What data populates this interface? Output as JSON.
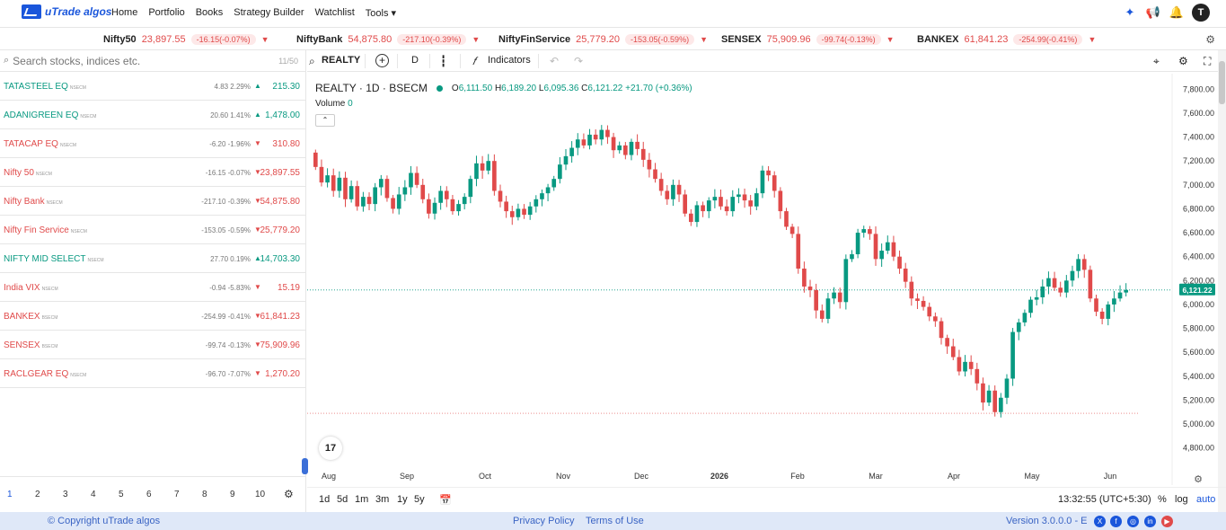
{
  "nav": {
    "brand": "uTrade algos",
    "menu": [
      "Home",
      "Portfolio",
      "Books",
      "Strategy Builder",
      "Watchlist",
      "Tools"
    ],
    "avatar": "T"
  },
  "ticker": [
    {
      "name": "Nifty50",
      "price": "23,897.55",
      "change": "-16.15(-0.07%)"
    },
    {
      "name": "NiftyBank",
      "price": "54,875.80",
      "change": "-217.10(-0.39%)"
    },
    {
      "name": "NiftyFinService",
      "price": "25,779.20",
      "change": "-153.05(-0.59%)"
    },
    {
      "name": "SENSEX",
      "price": "75,909.96",
      "change": "-99.74(-0.13%)"
    },
    {
      "name": "BANKEX",
      "price": "61,841.23",
      "change": "-254.99(-0.41%)"
    }
  ],
  "watchlist": {
    "search_placeholder": "Search stocks, indices etc.",
    "count": "11/50",
    "rows": [
      {
        "symbol": "TATASTEEL EQ",
        "exch": "NSECM",
        "change": "4.83 2.29%",
        "ltp": "215.30",
        "dir": "up"
      },
      {
        "symbol": "ADANIGREEN EQ",
        "exch": "NSECM",
        "change": "20.60 1.41%",
        "ltp": "1,478.00",
        "dir": "up"
      },
      {
        "symbol": "TATACAP EQ",
        "exch": "NSECM",
        "change": "-6.20 -1.96%",
        "ltp": "310.80",
        "dir": "dn"
      },
      {
        "symbol": "Nifty 50",
        "exch": "NSECM",
        "change": "-16.15 -0.07%",
        "ltp": "23,897.55",
        "dir": "dn"
      },
      {
        "symbol": "Nifty Bank",
        "exch": "NSECM",
        "change": "-217.10 -0.39%",
        "ltp": "54,875.80",
        "dir": "dn"
      },
      {
        "symbol": "Nifty Fin Service",
        "exch": "NSECM",
        "change": "-153.05 -0.59%",
        "ltp": "25,779.20",
        "dir": "dn"
      },
      {
        "symbol": "NIFTY MID SELECT",
        "exch": "NSECM",
        "change": "27.70 0.19%",
        "ltp": "14,703.30",
        "dir": "up"
      },
      {
        "symbol": "India VIX",
        "exch": "NSECM",
        "change": "-0.94 -5.83%",
        "ltp": "15.19",
        "dir": "dn"
      },
      {
        "symbol": "BANKEX",
        "exch": "BSECM",
        "change": "-254.99 -0.41%",
        "ltp": "61,841.23",
        "dir": "dn"
      },
      {
        "symbol": "SENSEX",
        "exch": "BSECM",
        "change": "-99.74 -0.13%",
        "ltp": "75,909.96",
        "dir": "dn"
      },
      {
        "symbol": "RACLGEAR EQ",
        "exch": "NSECM",
        "change": "-96.70 -7.07%",
        "ltp": "1,270.20",
        "dir": "dn"
      }
    ],
    "pages": [
      "1",
      "2",
      "3",
      "4",
      "5",
      "6",
      "7",
      "8",
      "9",
      "10"
    ]
  },
  "toolbar": {
    "symbol": "REALTY",
    "interval": "D",
    "indicators": "Indicators"
  },
  "chart_header": {
    "title": "REALTY · 1D · BSECM",
    "o_label": "O",
    "o": "6,111.50",
    "h_label": "H",
    "h": "6,189.20",
    "l_label": "L",
    "l": "6,095.36",
    "c_label": "C",
    "c": "6,121.22",
    "chg": "+21.70 (+0.36%)",
    "volume_label": "Volume",
    "volume": "0",
    "last_price": "6,121.22"
  },
  "chart_data": {
    "type": "candlestick",
    "y_ticks": [
      4800,
      5000,
      5200,
      5400,
      5600,
      5800,
      6000,
      6200,
      6400,
      6600,
      6800,
      7000,
      7200,
      7400,
      7600,
      7800
    ],
    "y_tick_labels": [
      "4,800.00",
      "5,000.00",
      "5,200.00",
      "5,400.00",
      "5,600.00",
      "5,800.00",
      "6,000.00",
      "6,200.00",
      "6,400.00",
      "6,600.00",
      "6,800.00",
      "7,000.00",
      "7,200.00",
      "7,400.00",
      "7,600.00",
      "7,800.00"
    ],
    "ylim": [
      4700,
      7870
    ],
    "x_labels": [
      "Aug",
      "Sep",
      "Oct",
      "Nov",
      "Dec",
      "2026",
      "Feb",
      "Mar",
      "Apr",
      "May",
      "Jun"
    ],
    "x_label_months": [
      0,
      1,
      2,
      3,
      4,
      5,
      6,
      7,
      8,
      9,
      10
    ],
    "closes": [
      7150,
      7020,
      7080,
      6950,
      7060,
      6880,
      6990,
      6820,
      6900,
      6840,
      6980,
      7050,
      6890,
      6800,
      6920,
      6980,
      7100,
      7000,
      6880,
      6760,
      6850,
      6950,
      6880,
      6780,
      6840,
      6900,
      7050,
      7180,
      7120,
      7200,
      6950,
      6860,
      6780,
      6730,
      6800,
      6750,
      6820,
      6880,
      6930,
      6980,
      7050,
      7170,
      7240,
      7310,
      7380,
      7330,
      7420,
      7380,
      7460,
      7400,
      7290,
      7330,
      7250,
      7360,
      7300,
      7210,
      7130,
      7050,
      6950,
      6880,
      7000,
      6920,
      6760,
      6690,
      6830,
      6780,
      6870,
      6900,
      6820,
      6780,
      6900,
      6920,
      6870,
      6820,
      6930,
      7120,
      7080,
      6950,
      6780,
      6650,
      6590,
      6300,
      6150,
      6120,
      5950,
      5880,
      6050,
      6100,
      6020,
      6380,
      6420,
      6600,
      6630,
      6590,
      6380,
      6450,
      6520,
      6400,
      6300,
      6190,
      6050,
      6030,
      5980,
      5900,
      5860,
      5720,
      5650,
      5560,
      5440,
      5520,
      5460,
      5340,
      5180,
      5280,
      5100,
      5220,
      5380,
      5770,
      5850,
      5930,
      6040,
      6060,
      6150,
      6220,
      6140,
      6100,
      6200,
      6280,
      6380,
      6290,
      6050,
      5940,
      5880,
      6000,
      6050,
      6100,
      6121.22
    ],
    "last": 6121.22,
    "reference_line": 5090
  },
  "bottom": {
    "ranges": [
      "1d",
      "5d",
      "1m",
      "3m",
      "1y",
      "5y"
    ],
    "time": "13:32:55 (UTC+5:30)",
    "pct": "%",
    "log": "log",
    "auto": "auto"
  },
  "footer": {
    "copyright": "© Copyright uTrade algos",
    "privacy": "Privacy Policy",
    "terms": "Terms of Use",
    "version": "Version 3.0.0.0 - E"
  },
  "colors": {
    "up": "#089981",
    "down": "#e04a4a",
    "accent": "#1a56db"
  }
}
